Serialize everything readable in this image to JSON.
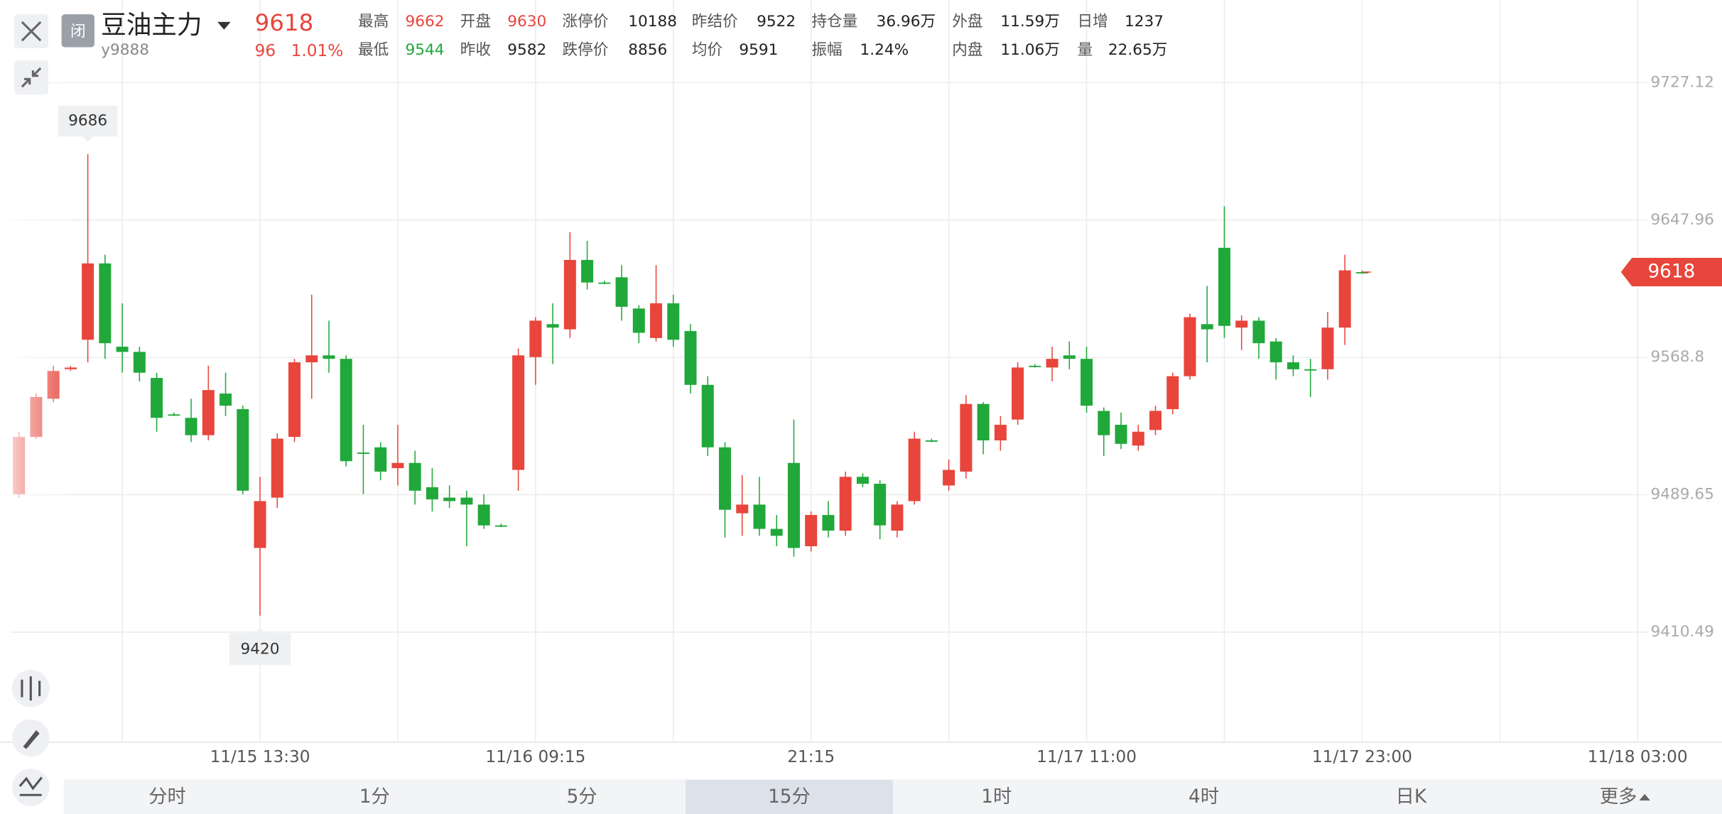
{
  "header": {
    "status": "闭",
    "name": "豆油主力",
    "code": "y9888",
    "last": 9618,
    "change": 96,
    "change_pct": "1.01%"
  },
  "quote": {
    "rows": [
      [
        {
          "label": "最高",
          "value": 9662,
          "color": "#e8453c"
        },
        {
          "label": "开盘",
          "value": 9630,
          "color": "#e8453c"
        },
        {
          "label": "涨停价",
          "value": 10188
        },
        {
          "label": "昨结价",
          "value": 9522
        },
        {
          "label": "持仓量",
          "value": "36.96万"
        },
        {
          "label": "外盘",
          "value": "11.59万"
        },
        {
          "label": "日增",
          "value": 1237
        }
      ],
      [
        {
          "label": "最低",
          "value": 9544,
          "color": "#1fa83b"
        },
        {
          "label": "昨收",
          "value": 9582
        },
        {
          "label": "跌停价",
          "value": 8856
        },
        {
          "label": "均价",
          "value": 9591
        },
        {
          "label": "振幅",
          "value": "1.24%"
        },
        {
          "label": "内盘",
          "value": "11.06万"
        },
        {
          "label": "量",
          "value": "22.65万"
        }
      ]
    ]
  },
  "chart_data": {
    "type": "candlestick",
    "up_color": "#e8453c",
    "down_color": "#21a83b",
    "open": [
      9490,
      9523,
      9545,
      9562,
      9579,
      9623,
      9575,
      9572,
      9557,
      9536,
      9534,
      9524,
      9548,
      9539,
      9459,
      9488,
      9523,
      9566,
      9570,
      9568,
      9514,
      9517,
      9505,
      9508,
      9494,
      9488,
      9488,
      9484,
      9472,
      9504,
      9569,
      9588,
      9585,
      9625,
      9612,
      9615,
      9597,
      9580,
      9600,
      9584,
      9553,
      9517,
      9479,
      9484,
      9470,
      9508,
      9460,
      9478,
      9469,
      9500,
      9496,
      9469,
      9486,
      9521,
      9495,
      9503,
      9542,
      9521,
      9533,
      9564,
      9563,
      9570,
      9568,
      9538,
      9530,
      9518,
      9527,
      9539,
      9558,
      9588,
      9632,
      9586,
      9590,
      9578,
      9566,
      9562,
      9562,
      9586,
      9618
    ],
    "high": [
      9526,
      9548,
      9564,
      9564,
      9686,
      9628,
      9600,
      9575,
      9560,
      9537,
      9545,
      9564,
      9560,
      9541,
      9500,
      9525,
      9568,
      9605,
      9590,
      9570,
      9530,
      9520,
      9530,
      9515,
      9505,
      9495,
      9492,
      9490,
      9473,
      9574,
      9592,
      9600,
      9641,
      9636,
      9613,
      9622,
      9599,
      9622,
      9605,
      9588,
      9558,
      9520,
      9501,
      9500,
      9478,
      9533,
      9480,
      9486,
      9503,
      9502,
      9498,
      9486,
      9526,
      9522,
      9510,
      9547,
      9543,
      9535,
      9566,
      9565,
      9575,
      9578,
      9575,
      9540,
      9537,
      9530,
      9541,
      9560,
      9594,
      9610,
      9656,
      9593,
      9592,
      9580,
      9570,
      9568,
      9595,
      9628,
      9619
    ],
    "low": [
      9488,
      9522,
      9543,
      9561,
      9566,
      9568,
      9560,
      9555,
      9526,
      9535,
      9520,
      9521,
      9535,
      9490,
      9420,
      9482,
      9520,
      9545,
      9560,
      9506,
      9490,
      9498,
      9495,
      9484,
      9480,
      9482,
      9460,
      9470,
      9471,
      9492,
      9553,
      9565,
      9580,
      9608,
      9611,
      9590,
      9577,
      9578,
      9575,
      9548,
      9512,
      9465,
      9466,
      9466,
      9460,
      9454,
      9457,
      9465,
      9466,
      9494,
      9464,
      9465,
      9484,
      9520,
      9492,
      9499,
      9513,
      9515,
      9530,
      9563,
      9555,
      9562,
      9537,
      9512,
      9516,
      9515,
      9524,
      9536,
      9556,
      9566,
      9580,
      9573,
      9568,
      9556,
      9558,
      9546,
      9556,
      9576,
      9617
    ],
    "close": [
      9523,
      9546,
      9561,
      9563,
      9623,
      9577,
      9572,
      9560,
      9534,
      9536,
      9524,
      9550,
      9541,
      9492,
      9486,
      9522,
      9566,
      9570,
      9568,
      9509,
      9514,
      9503,
      9508,
      9492,
      9487,
      9486,
      9484,
      9472,
      9472,
      9570,
      9590,
      9586,
      9625,
      9612,
      9612,
      9598,
      9583,
      9600,
      9579,
      9553,
      9517,
      9481,
      9484,
      9470,
      9466,
      9459,
      9478,
      9469,
      9500,
      9496,
      9472,
      9484,
      9522,
      9521,
      9504,
      9542,
      9521,
      9530,
      9563,
      9564,
      9568,
      9568,
      9541,
      9524,
      9519,
      9526,
      9538,
      9558,
      9592,
      9585,
      9587,
      9590,
      9577,
      9566,
      9562,
      9562,
      9586,
      9619,
      9618
    ],
    "ylim": [
      9347,
      9740
    ],
    "yticks": [
      9727.12,
      9647.96,
      9568.8,
      9489.65,
      9410.49
    ],
    "xlim": [
      -1.1,
      98.9
    ],
    "xticks": [
      {
        "value": 14,
        "label": "11/15 13:30"
      },
      {
        "value": 30,
        "label": "11/16 09:15"
      },
      {
        "value": 46,
        "label": "21:15"
      },
      {
        "value": 62,
        "label": "11/17 11:00"
      },
      {
        "value": 78,
        "label": "11/17 23:00"
      },
      {
        "value": 94,
        "label": "11/18 03:00"
      }
    ],
    "grid": true
  },
  "tabs": [
    {
      "label": "分时",
      "selected": false
    },
    {
      "label": "1分",
      "selected": false
    },
    {
      "label": "5分",
      "selected": false
    },
    {
      "label": "15分",
      "selected": true
    },
    {
      "label": "1时",
      "selected": false
    },
    {
      "label": "4时",
      "selected": false
    },
    {
      "label": "日K",
      "selected": false
    },
    {
      "label": "更多",
      "selected": false
    }
  ]
}
